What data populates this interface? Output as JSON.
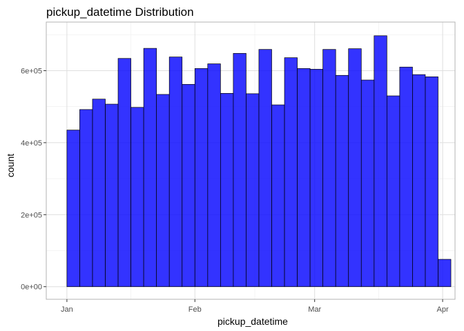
{
  "chart_data": {
    "type": "bar",
    "title": "pickup_datetime Distribution",
    "xlabel": "pickup_datetime",
    "ylabel": "count",
    "x_tick_labels": [
      "Jan",
      "Feb",
      "Mar",
      "Apr"
    ],
    "x_ticks": [
      "2016-01-01",
      "2016-02-01",
      "2016-03-01",
      "2016-04-01"
    ],
    "y_tick_labels": [
      "0e+00",
      "2e+05",
      "4e+05",
      "6e+05"
    ],
    "y_ticks": [
      0,
      200000,
      400000,
      600000
    ],
    "xlim": [
      "2015-12-27",
      "2016-04-04"
    ],
    "ylim": [
      -35000,
      735000
    ],
    "bin_start": "2016-01-01",
    "bin_width_days": 3.1,
    "values": [
      435000,
      492000,
      521000,
      507000,
      634000,
      498000,
      662000,
      534000,
      638000,
      562000,
      606000,
      619000,
      537000,
      648000,
      536000,
      659000,
      505000,
      636000,
      606000,
      604000,
      659000,
      587000,
      661000,
      574000,
      697000,
      530000,
      610000,
      589000,
      583000,
      76000
    ],
    "grid": true,
    "legend": "none",
    "bar_fill": "#0000ff",
    "bar_fill_opacity": 0.8,
    "bar_outline": "#000000",
    "panel_border": "#b3b3b3",
    "grid_major": "#dedede",
    "grid_minor": "#eeeeee"
  }
}
